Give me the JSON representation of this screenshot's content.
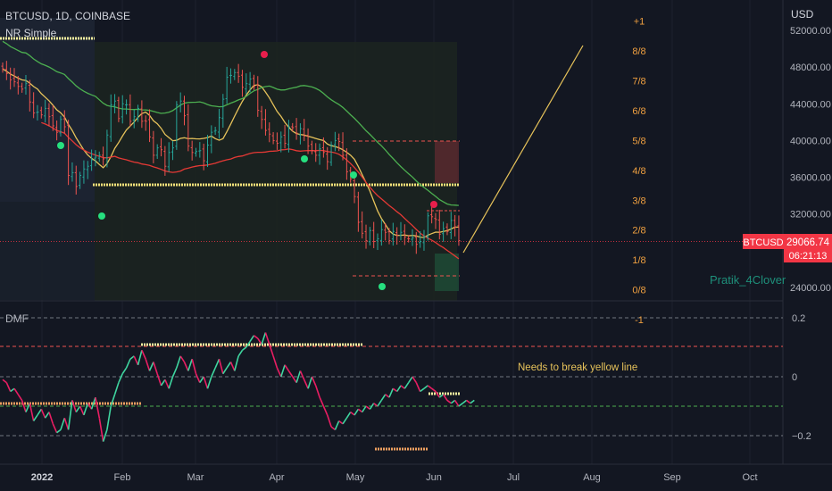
{
  "header": {
    "symbol_line": "BTCUSD, 1D, COINBASE",
    "indicator_name": "NR Simple"
  },
  "currency": "USD",
  "price_axis": {
    "ticks": [
      {
        "label": "52000.00",
        "value": 52000
      },
      {
        "label": "48000.00",
        "value": 48000
      },
      {
        "label": "44000.00",
        "value": 44000
      },
      {
        "label": "40000.00",
        "value": 40000
      },
      {
        "label": "36000.00",
        "value": 36000
      },
      {
        "label": "32000.00",
        "value": 32000
      },
      {
        "label": "24000.00",
        "value": 24000
      }
    ],
    "current_symbol": "BTCUSD",
    "current_price": "29066.74",
    "countdown": "06:21:13"
  },
  "murrey_levels": [
    {
      "label": "+1",
      "value": 53000
    },
    {
      "label": "8/8",
      "value": 49750
    },
    {
      "label": "7/8",
      "value": 46500
    },
    {
      "label": "6/8",
      "value": 43250
    },
    {
      "label": "5/8",
      "value": 40000
    },
    {
      "label": "4/8",
      "value": 36750
    },
    {
      "label": "3/8",
      "value": 33500
    },
    {
      "label": "2/8",
      "value": 30250
    },
    {
      "label": "1/8",
      "value": 27000
    },
    {
      "label": "0/8",
      "value": 23750
    },
    {
      "label": "-1",
      "value": 20500
    }
  ],
  "watermark": "Pratik_4Clover",
  "dmf": {
    "label": "DMF",
    "ticks": [
      {
        "label": "0.2",
        "value": 0.2
      },
      {
        "label": "0",
        "value": 0
      },
      {
        "label": "−0.2",
        "value": -0.2
      }
    ],
    "annotation": "Needs to break yellow line"
  },
  "time_axis": [
    "2022",
    "Feb",
    "Mar",
    "Apr",
    "May",
    "Jun",
    "Jul",
    "Aug",
    "Sep",
    "Oct"
  ],
  "colors": {
    "background": "#131722",
    "bull": "#26a69a",
    "bear": "#ef5350",
    "ma_yellow": "#e6c25a",
    "ma_green": "#4caf50",
    "ma_red": "#e53935",
    "murrey_text": "#f0a040",
    "dmf_pos": "#3fd6a0",
    "dmf_neg": "#e91e63",
    "price_tag": "#f23645"
  },
  "chart_data": [
    {
      "type": "candlestick",
      "title": "BTCUSD, 1D, COINBASE",
      "ylabel": "USD",
      "ylim": [
        20500,
        54500
      ],
      "x_labels": [
        "2022",
        "Feb",
        "Mar",
        "Apr",
        "May",
        "Jun",
        "Jul",
        "Aug",
        "Sep",
        "Oct"
      ],
      "series": [
        {
          "name": "close",
          "values": [
            47800,
            47300,
            46600,
            46400,
            45900,
            45600,
            46200,
            44200,
            43000,
            43100,
            42800,
            43500,
            42600,
            41600,
            40900,
            42300,
            41500,
            36200,
            36500,
            35000,
            36200,
            36900,
            37200,
            37900,
            38200,
            38400,
            38000,
            40600,
            43900,
            44300,
            42400,
            44000,
            43900,
            42100,
            42600,
            43500,
            42100,
            42100,
            40400,
            38400,
            39200,
            39000,
            37200,
            38700,
            39200,
            43900,
            44300,
            42700,
            39400,
            38700,
            38800,
            38900,
            37800,
            39500,
            40900,
            41100,
            42500,
            44500,
            46900,
            47100,
            47400,
            47000,
            45800,
            46200,
            46700,
            45900,
            43300,
            42300,
            41100,
            40700,
            40000,
            39700,
            40400,
            39700,
            41500,
            41400,
            40800,
            41300,
            40500,
            39400,
            38900,
            38400,
            39100,
            38700,
            37700,
            39500,
            40000,
            39900,
            38400,
            36600,
            35800,
            33900,
            31100,
            29900,
            29100,
            30200,
            29000,
            29300,
            30300,
            30000,
            29100,
            30100,
            29700,
            30000,
            29500,
            29300,
            29400,
            28700,
            29000,
            29500,
            31800,
            31700,
            31400,
            29800,
            30400,
            30100,
            31300,
            30600,
            29100
          ]
        }
      ]
    },
    {
      "type": "line",
      "ylabel": "DMF",
      "ylim": [
        -0.29,
        0.23
      ],
      "series": [
        {
          "name": "DMF",
          "values": [
            -0.01,
            -0.02,
            -0.05,
            -0.04,
            -0.06,
            -0.08,
            -0.12,
            -0.09,
            -0.15,
            -0.13,
            -0.11,
            -0.14,
            -0.12,
            -0.16,
            -0.19,
            -0.18,
            -0.14,
            -0.18,
            -0.08,
            -0.12,
            -0.1,
            -0.13,
            -0.09,
            -0.11,
            -0.07,
            -0.14,
            -0.22,
            -0.18,
            -0.1,
            -0.06,
            -0.02,
            0.01,
            0.03,
            0.06,
            0.07,
            0.04,
            0.09,
            0.06,
            0.02,
            0.05,
            0.01,
            -0.03,
            -0.01,
            -0.04,
            0.0,
            0.03,
            0.07,
            0.05,
            0.02,
            0.06,
            0.01,
            -0.02,
            0.0,
            -0.04,
            0.0,
            0.03,
            0.06,
            0.01,
            0.03,
            0.05,
            0.02,
            0.07,
            0.09,
            0.1,
            0.12,
            0.14,
            0.13,
            0.11,
            0.15,
            0.11,
            0.07,
            0.03,
            0.0,
            0.04,
            0.02,
            0.0,
            -0.02,
            0.02,
            -0.01,
            -0.04,
            0.0,
            -0.03,
            -0.07,
            -0.1,
            -0.13,
            -0.17,
            -0.18,
            -0.15,
            -0.16,
            -0.14,
            -0.12,
            -0.13,
            -0.11,
            -0.12,
            -0.1,
            -0.11,
            -0.09,
            -0.1,
            -0.08,
            -0.06,
            -0.07,
            -0.04,
            -0.05,
            -0.03,
            -0.04,
            -0.02,
            0.0,
            -0.02,
            -0.05,
            -0.04,
            -0.03,
            -0.04,
            -0.05,
            -0.07,
            -0.06,
            -0.08,
            -0.09,
            -0.08,
            -0.1,
            -0.09,
            -0.08,
            -0.09,
            -0.08
          ]
        }
      ]
    }
  ]
}
